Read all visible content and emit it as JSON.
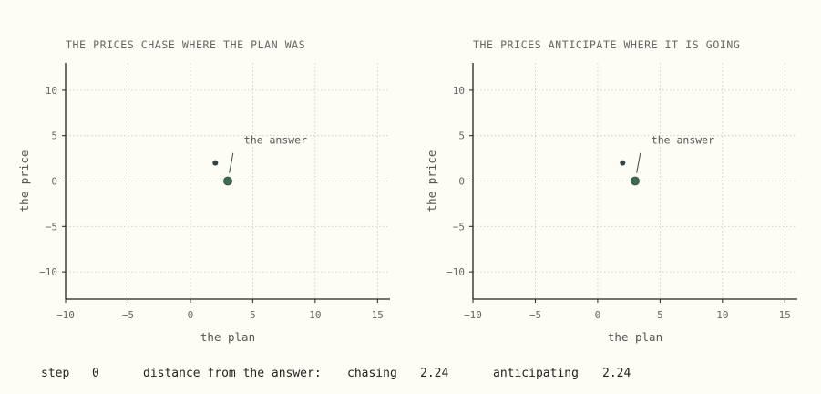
{
  "chart_data": [
    {
      "type": "scatter",
      "title": "THE PRICES CHASE WHERE THE PLAN WAS",
      "xlabel": "the plan",
      "ylabel": "the price",
      "xlim": [
        -10,
        16
      ],
      "ylim": [
        -13,
        13
      ],
      "xticks": [
        -10,
        -5,
        0,
        5,
        10,
        15
      ],
      "xtick_labels": [
        "−10",
        "−5",
        "0",
        "5",
        "10",
        "15"
      ],
      "yticks": [
        -10,
        -5,
        0,
        5,
        10
      ],
      "ytick_labels": [
        "−10",
        "−5",
        "0",
        "5",
        "10"
      ],
      "grid": true,
      "points": [
        {
          "x": 2,
          "y": 2,
          "role": "current"
        },
        {
          "x": 3,
          "y": 0,
          "role": "answer"
        }
      ],
      "annotation": {
        "text": "the answer",
        "target_x": 3,
        "target_y": 0,
        "text_x": 4.3,
        "text_y": 4.5
      }
    },
    {
      "type": "scatter",
      "title": "THE PRICES ANTICIPATE WHERE IT IS GOING",
      "xlabel": "the plan",
      "ylabel": "the price",
      "xlim": [
        -10,
        16
      ],
      "ylim": [
        -13,
        13
      ],
      "xticks": [
        -10,
        -5,
        0,
        5,
        10,
        15
      ],
      "xtick_labels": [
        "−10",
        "−5",
        "0",
        "5",
        "10",
        "15"
      ],
      "yticks": [
        -10,
        -5,
        0,
        5,
        10
      ],
      "ytick_labels": [
        "−10",
        "−5",
        "0",
        "5",
        "10"
      ],
      "grid": true,
      "points": [
        {
          "x": 2,
          "y": 2,
          "role": "current"
        },
        {
          "x": 3,
          "y": 0,
          "role": "answer"
        }
      ],
      "annotation": {
        "text": "the answer",
        "target_x": 3,
        "target_y": 0,
        "text_x": 4.3,
        "text_y": 4.5
      }
    }
  ],
  "colors": {
    "current_point": "#2f4448",
    "answer_point": "#3d6b4f",
    "annotation_arrow": "#3d5a48"
  },
  "status": {
    "step_label": "step",
    "step_value": "0",
    "distance_label": "distance from the answer:",
    "chasing_label": "chasing",
    "chasing_value": "2.24",
    "anticipating_label": "anticipating",
    "anticipating_value": "2.24"
  }
}
